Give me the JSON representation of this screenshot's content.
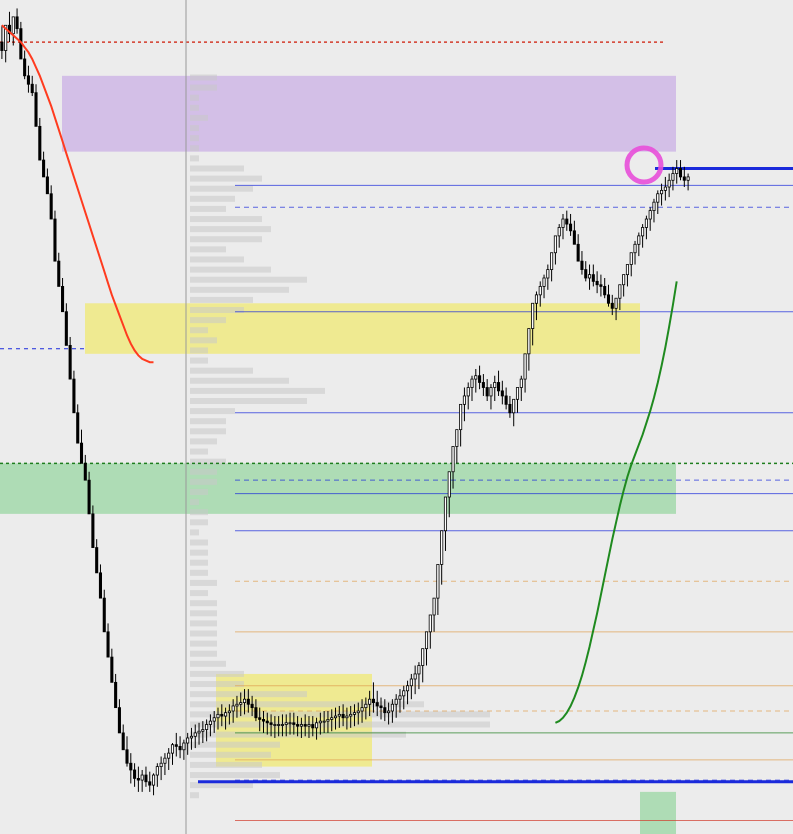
{
  "chart_data": {
    "type": "candlestick",
    "title": "",
    "xlabel": "",
    "ylabel": "",
    "grid": false,
    "legend": "none",
    "x": [
      1,
      2,
      3,
      4,
      5,
      6,
      7,
      8,
      9,
      10,
      11,
      12,
      13,
      14,
      15,
      16,
      17,
      18,
      19,
      20,
      21,
      22,
      23,
      24,
      25,
      26,
      27,
      28,
      29,
      30,
      31,
      32,
      33,
      34,
      35,
      36,
      37,
      38,
      39,
      40,
      41,
      42,
      43,
      44,
      45,
      46,
      47,
      48,
      49,
      50,
      51,
      52,
      53,
      54,
      55,
      56,
      57,
      58,
      59,
      60,
      61,
      62,
      63,
      64,
      65,
      66,
      67,
      68,
      69,
      70,
      71,
      72,
      73,
      74,
      75,
      76,
      77,
      78,
      79,
      80,
      81,
      82,
      83,
      84,
      85,
      86,
      87,
      88,
      89,
      90,
      91,
      92,
      93,
      94,
      95,
      96,
      97,
      98,
      99,
      100,
      101,
      102,
      103,
      104,
      105,
      106,
      107,
      108,
      109,
      110,
      111,
      112,
      113,
      114,
      115,
      116,
      117,
      118,
      119,
      120,
      121,
      122,
      123,
      124,
      125,
      126,
      127,
      128,
      129,
      130,
      131,
      132,
      133,
      134,
      135,
      136,
      137,
      138,
      139,
      140,
      141,
      142,
      143,
      144,
      145,
      146,
      147,
      148,
      149,
      150,
      151,
      152,
      153,
      154,
      155,
      156,
      157,
      158,
      159,
      160,
      161,
      162,
      163,
      164,
      165,
      166,
      167,
      168,
      169,
      170,
      171,
      172,
      173,
      174,
      175,
      176,
      177,
      178,
      179,
      180,
      181,
      182
    ],
    "candles": {
      "open": [
        950,
        945,
        960,
        955,
        965,
        958,
        940,
        930,
        925,
        920,
        900,
        880,
        870,
        860,
        845,
        820,
        805,
        790,
        770,
        750,
        730,
        712,
        700,
        690,
        670,
        650,
        635,
        620,
        600,
        585,
        570,
        555,
        540,
        530,
        522,
        518,
        513,
        512,
        515,
        511,
        509,
        515,
        520,
        522,
        525,
        528,
        533,
        532,
        530,
        534,
        537,
        538,
        540,
        541,
        542,
        545,
        547,
        549,
        551,
        550,
        552,
        553,
        556,
        557,
        558,
        560,
        557,
        555,
        549,
        548,
        547,
        546,
        545,
        545,
        545,
        545,
        546,
        546,
        545,
        544,
        545,
        544,
        545,
        543,
        546,
        547,
        547,
        548,
        549,
        550,
        551,
        549,
        550,
        551,
        552,
        553,
        555,
        557,
        560,
        558,
        556,
        555,
        552,
        553,
        557,
        560,
        562,
        565,
        568,
        572,
        575,
        580,
        590,
        600,
        610,
        620,
        640,
        660,
        680,
        695,
        710,
        720,
        735,
        740,
        745,
        750,
        752,
        748,
        745,
        740,
        745,
        748,
        743,
        740,
        735,
        730,
        738,
        745,
        750,
        765,
        780,
        795,
        800,
        805,
        810,
        815,
        825,
        835,
        840,
        845,
        842,
        838,
        830,
        820,
        815,
        810,
        812,
        808,
        806,
        805,
        800,
        795,
        792,
        798,
        806,
        812,
        818,
        825,
        830,
        835,
        840,
        845,
        850,
        855,
        860,
        862,
        864,
        868,
        872,
        875,
        870,
        868
      ],
      "high": [
        960,
        955,
        968,
        962,
        970,
        962,
        945,
        936,
        930,
        925,
        905,
        885,
        875,
        865,
        850,
        825,
        810,
        795,
        775,
        755,
        735,
        720,
        705,
        695,
        675,
        655,
        640,
        625,
        605,
        590,
        575,
        560,
        545,
        538,
        528,
        522,
        520,
        518,
        520,
        517,
        516,
        522,
        526,
        528,
        531,
        534,
        540,
        538,
        536,
        540,
        543,
        545,
        546,
        547,
        548,
        551,
        553,
        555,
        557,
        555,
        557,
        560,
        562,
        564,
        566,
        566,
        562,
        560,
        555,
        553,
        552,
        551,
        550,
        550,
        551,
        551,
        552,
        552,
        550,
        549,
        551,
        550,
        550,
        549,
        552,
        553,
        553,
        554,
        555,
        556,
        557,
        555,
        556,
        557,
        558,
        560,
        561,
        565,
        570,
        565,
        561,
        560,
        558,
        560,
        563,
        566,
        568,
        571,
        575,
        580,
        582,
        590,
        600,
        610,
        620,
        630,
        650,
        670,
        690,
        705,
        720,
        730,
        745,
        748,
        752,
        756,
        758,
        753,
        750,
        747,
        752,
        755,
        749,
        745,
        740,
        738,
        745,
        752,
        760,
        775,
        790,
        802,
        808,
        812,
        818,
        825,
        835,
        842,
        848,
        850,
        848,
        844,
        836,
        826,
        820,
        818,
        818,
        814,
        812,
        810,
        806,
        800,
        798,
        805,
        812,
        818,
        825,
        832,
        837,
        842,
        847,
        852,
        857,
        862,
        866,
        870,
        872,
        876,
        880,
        880,
        876,
        872
      ],
      "low": [
        940,
        938,
        950,
        948,
        955,
        945,
        928,
        920,
        918,
        905,
        885,
        870,
        860,
        845,
        835,
        805,
        790,
        775,
        755,
        735,
        715,
        700,
        690,
        680,
        660,
        640,
        625,
        610,
        590,
        575,
        560,
        545,
        530,
        520,
        510,
        508,
        505,
        505,
        508,
        505,
        503,
        508,
        512,
        515,
        518,
        521,
        526,
        525,
        524,
        527,
        530,
        531,
        533,
        534,
        535,
        538,
        540,
        542,
        544,
        542,
        545,
        546,
        549,
        550,
        551,
        552,
        550,
        547,
        541,
        540,
        539,
        538,
        537,
        538,
        538,
        538,
        539,
        539,
        538,
        537,
        538,
        537,
        538,
        536,
        539,
        540,
        540,
        541,
        542,
        543,
        544,
        542,
        543,
        544,
        545,
        546,
        548,
        550,
        552,
        550,
        548,
        547,
        545,
        546,
        549,
        552,
        554,
        557,
        560,
        563,
        566,
        570,
        580,
        590,
        600,
        610,
        628,
        648,
        668,
        685,
        700,
        710,
        725,
        732,
        737,
        742,
        744,
        740,
        737,
        732,
        737,
        740,
        735,
        732,
        727,
        722,
        730,
        737,
        742,
        755,
        770,
        785,
        793,
        798,
        803,
        808,
        818,
        828,
        833,
        838,
        835,
        830,
        822,
        812,
        808,
        803,
        805,
        801,
        799,
        798,
        793,
        788,
        785,
        791,
        799,
        805,
        811,
        818,
        823,
        828,
        833,
        838,
        843,
        848,
        853,
        856,
        858,
        862,
        866,
        868,
        864,
        862
      ],
      "close": [
        945,
        960,
        955,
        965,
        958,
        940,
        930,
        925,
        920,
        900,
        880,
        870,
        860,
        845,
        820,
        805,
        790,
        770,
        750,
        730,
        712,
        700,
        690,
        670,
        650,
        635,
        620,
        600,
        585,
        570,
        555,
        540,
        530,
        522,
        518,
        513,
        512,
        515,
        511,
        509,
        515,
        520,
        522,
        525,
        528,
        533,
        532,
        530,
        534,
        537,
        538,
        540,
        541,
        542,
        545,
        547,
        549,
        551,
        550,
        552,
        553,
        556,
        557,
        558,
        560,
        557,
        555,
        549,
        548,
        547,
        546,
        545,
        545,
        545,
        545,
        546,
        546,
        545,
        544,
        545,
        544,
        545,
        543,
        546,
        547,
        547,
        548,
        549,
        550,
        551,
        549,
        550,
        551,
        552,
        553,
        555,
        557,
        560,
        558,
        556,
        555,
        552,
        553,
        557,
        560,
        562,
        565,
        568,
        572,
        575,
        580,
        590,
        600,
        610,
        620,
        640,
        660,
        680,
        695,
        710,
        720,
        735,
        740,
        745,
        750,
        752,
        748,
        745,
        740,
        745,
        748,
        743,
        740,
        735,
        730,
        738,
        745,
        750,
        765,
        780,
        795,
        800,
        805,
        810,
        815,
        825,
        835,
        840,
        845,
        842,
        838,
        830,
        820,
        815,
        810,
        812,
        808,
        806,
        805,
        800,
        795,
        792,
        798,
        806,
        812,
        818,
        825,
        830,
        835,
        840,
        845,
        850,
        855,
        860,
        862,
        864,
        868,
        872,
        875,
        870,
        868,
        870
      ]
    },
    "indicators": {
      "red_line": [
        960,
        958,
        956,
        954,
        952,
        950,
        947,
        944,
        940,
        935,
        930,
        924,
        918,
        912,
        905,
        898,
        891,
        884,
        877,
        870,
        863,
        856,
        849,
        842,
        835,
        828,
        821,
        814,
        807,
        800,
        794,
        788,
        782,
        776,
        771,
        767,
        764,
        762,
        761,
        760,
        760
      ],
      "green_line": [
        546,
        547,
        549,
        552,
        556,
        561,
        567,
        574,
        582,
        591,
        601,
        611,
        622,
        633,
        644,
        655,
        665,
        675,
        684,
        692,
        699,
        705,
        711,
        717,
        724,
        731,
        739,
        748,
        758,
        769,
        781,
        794,
        808
      ]
    },
    "zones": [
      {
        "color": "#cdb4e6",
        "price_top": 930,
        "price_bottom": 885
      },
      {
        "color": "#f0ea7a",
        "price_top": 795,
        "price_bottom": 765
      },
      {
        "color": "#f0ea7a",
        "price_top": 575,
        "price_bottom": 520
      },
      {
        "color": "#9fd8a8",
        "price_top": 505,
        "price_bottom": 470
      },
      {
        "color": "#9fd8a8",
        "price_top": 700,
        "price_bottom": 670
      }
    ],
    "levels": [
      865,
      852,
      790,
      730,
      690,
      682,
      660,
      630,
      600,
      568,
      553,
      540,
      524,
      512,
      488
    ],
    "colors": {
      "background": "#ececec",
      "bull_candle": "#ffffff",
      "bear_candle": "#000000",
      "ema_red": "#ff3b1f",
      "ema_green": "#1f8a1f",
      "level_blue": "#1a2adb",
      "level_red": "#d23a2a",
      "level_orange": "#e0a050",
      "level_green": "#1e7e1e",
      "volume_profile": "#c8c8c8",
      "marker": "#e84fd9"
    }
  }
}
